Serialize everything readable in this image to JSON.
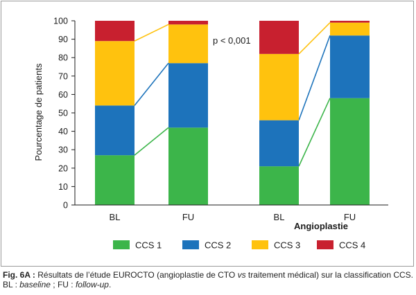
{
  "chart_data": {
    "type": "bar",
    "stacked": true,
    "ylabel": "Pourcentage de patients",
    "ylim": [
      0,
      100
    ],
    "yticks": [
      0,
      10,
      20,
      30,
      40,
      50,
      60,
      70,
      80,
      90,
      100
    ],
    "categories": [
      "BL",
      "FU",
      "BL",
      "FU"
    ],
    "group_label": "Angioplastie",
    "annotation": "p < 0,001",
    "series": [
      {
        "name": "CCS 1",
        "color": "#3cb54a",
        "values": [
          27,
          42,
          21,
          58
        ]
      },
      {
        "name": "CCS 2",
        "color": "#1d73bb",
        "values": [
          27,
          35,
          25,
          34
        ]
      },
      {
        "name": "CCS 3",
        "color": "#ffc20e",
        "values": [
          35,
          21,
          36,
          7
        ]
      },
      {
        "name": "CCS 4",
        "color": "#c8202f",
        "values": [
          11,
          2,
          18,
          1
        ]
      }
    ],
    "legend_position": "bottom",
    "connector_lines": true
  },
  "caption": {
    "label": "Fig. 6A :",
    "text_1": " Résultats de l’étude EUROCTO (angioplastie de CTO ",
    "vs": "vs",
    "text_2": " traitement médical) sur la classification CCS.",
    "line2_bl": "BL : ",
    "baseline": "baseline",
    "line2_mid": " ; FU : ",
    "followup": "follow-up",
    "line2_end": "."
  }
}
